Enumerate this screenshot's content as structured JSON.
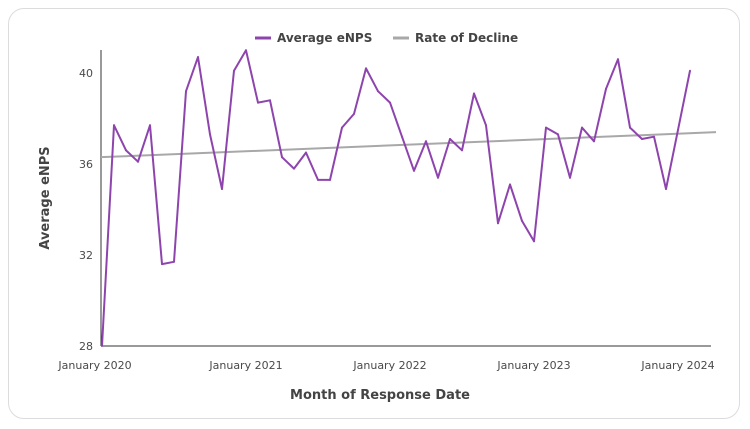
{
  "chart_data": {
    "type": "line",
    "title": "",
    "xlabel": "Month of Response Date",
    "ylabel": "Average eNPS",
    "x_ticks": [
      "January 2020",
      "January 2021",
      "January 2022",
      "January 2023",
      "January 2024"
    ],
    "y_ticks": [
      "28",
      "32",
      "36",
      "40"
    ],
    "ylim": [
      28,
      41
    ],
    "xlim": [
      "2020-01",
      "2024-02"
    ],
    "grid": false,
    "legend_position": "top",
    "x": [
      "2020-01",
      "2020-02",
      "2020-03",
      "2020-04",
      "2020-05",
      "2020-06",
      "2020-07",
      "2020-08",
      "2020-09",
      "2020-10",
      "2020-11",
      "2020-12",
      "2021-01",
      "2021-02",
      "2021-03",
      "2021-04",
      "2021-05",
      "2021-06",
      "2021-07",
      "2021-08",
      "2021-09",
      "2021-10",
      "2021-11",
      "2021-12",
      "2022-01",
      "2022-02",
      "2022-03",
      "2022-04",
      "2022-05",
      "2022-06",
      "2022-07",
      "2022-08",
      "2022-09",
      "2022-10",
      "2022-11",
      "2022-12",
      "2023-01",
      "2023-02",
      "2023-03",
      "2023-04",
      "2023-05",
      "2023-06",
      "2023-07",
      "2023-08",
      "2023-09",
      "2023-10",
      "2023-11",
      "2023-12",
      "2024-01",
      "2024-02"
    ],
    "series": [
      {
        "name": "Average eNPS",
        "color": "#8e44ad",
        "values": [
          28.0,
          37.7,
          36.6,
          36.1,
          37.7,
          31.6,
          31.7,
          39.2,
          40.7,
          37.3,
          34.9,
          40.1,
          41.0,
          38.7,
          38.8,
          36.3,
          35.8,
          36.5,
          35.3,
          35.3,
          37.6,
          38.2,
          40.2,
          39.2,
          38.7,
          37.2,
          35.7,
          37.0,
          35.4,
          37.1,
          36.6,
          39.1,
          37.7,
          33.4,
          35.1,
          33.5,
          32.6,
          37.6,
          37.3,
          35.4,
          37.6,
          37.0,
          39.3,
          40.6,
          37.6,
          37.1,
          37.2,
          34.9,
          37.5,
          40.1
        ]
      },
      {
        "name": "Rate of Decline",
        "color": "#a8a8a8",
        "values_start_end": [
          36.3,
          37.4
        ]
      }
    ]
  }
}
